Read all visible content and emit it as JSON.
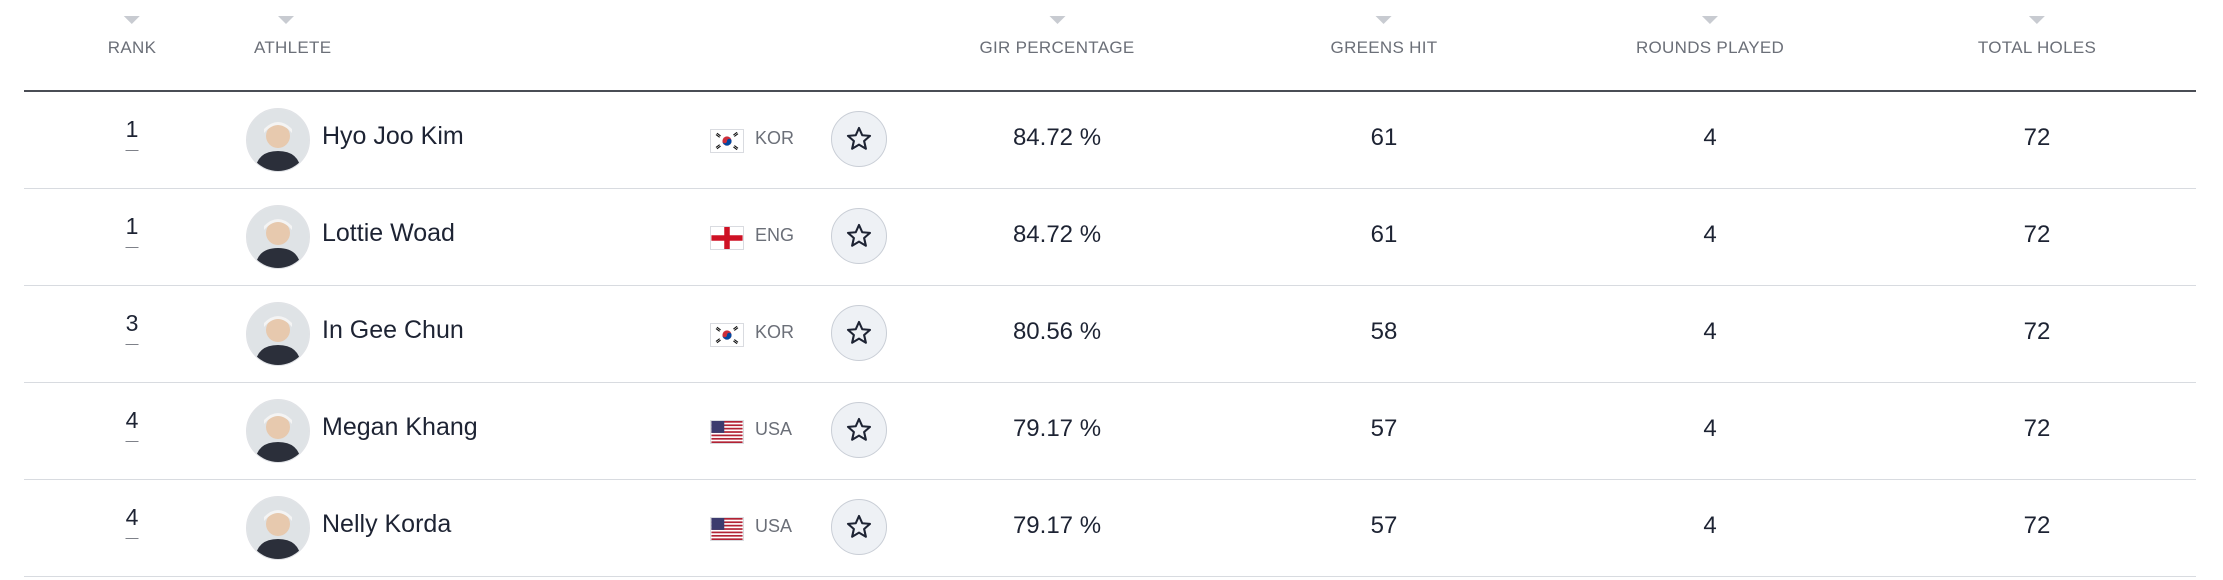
{
  "columns": {
    "rank": "RANK",
    "athlete": "ATHLETE",
    "gir": "GIR PERCENTAGE",
    "greens": "GREENS HIT",
    "rounds": "ROUNDS PLAYED",
    "holes": "TOTAL HOLES"
  },
  "rows": [
    {
      "rank": "1",
      "movement": "—",
      "name": "Hyo Joo Kim",
      "country": "KOR",
      "flag": "kor-flag",
      "gir": "84.72 %",
      "greens": "61",
      "rounds": "4",
      "holes": "72"
    },
    {
      "rank": "1",
      "movement": "—",
      "name": "Lottie Woad",
      "country": "ENG",
      "flag": "eng-flag",
      "gir": "84.72 %",
      "greens": "61",
      "rounds": "4",
      "holes": "72"
    },
    {
      "rank": "3",
      "movement": "—",
      "name": "In Gee Chun",
      "country": "KOR",
      "flag": "kor-flag",
      "gir": "80.56 %",
      "greens": "58",
      "rounds": "4",
      "holes": "72"
    },
    {
      "rank": "4",
      "movement": "—",
      "name": "Megan Khang",
      "country": "USA",
      "flag": "usa-flag",
      "gir": "79.17 %",
      "greens": "57",
      "rounds": "4",
      "holes": "72"
    },
    {
      "rank": "4",
      "movement": "—",
      "name": "Nelly Korda",
      "country": "USA",
      "flag": "usa-flag",
      "gir": "79.17 %",
      "greens": "57",
      "rounds": "4",
      "holes": "72"
    }
  ],
  "colors": {
    "text": "#1d2333",
    "muted": "#6b6f78",
    "header_rule": "#4a4d55",
    "row_rule": "#d8dbe0",
    "fav_bg": "#eef1f5"
  }
}
